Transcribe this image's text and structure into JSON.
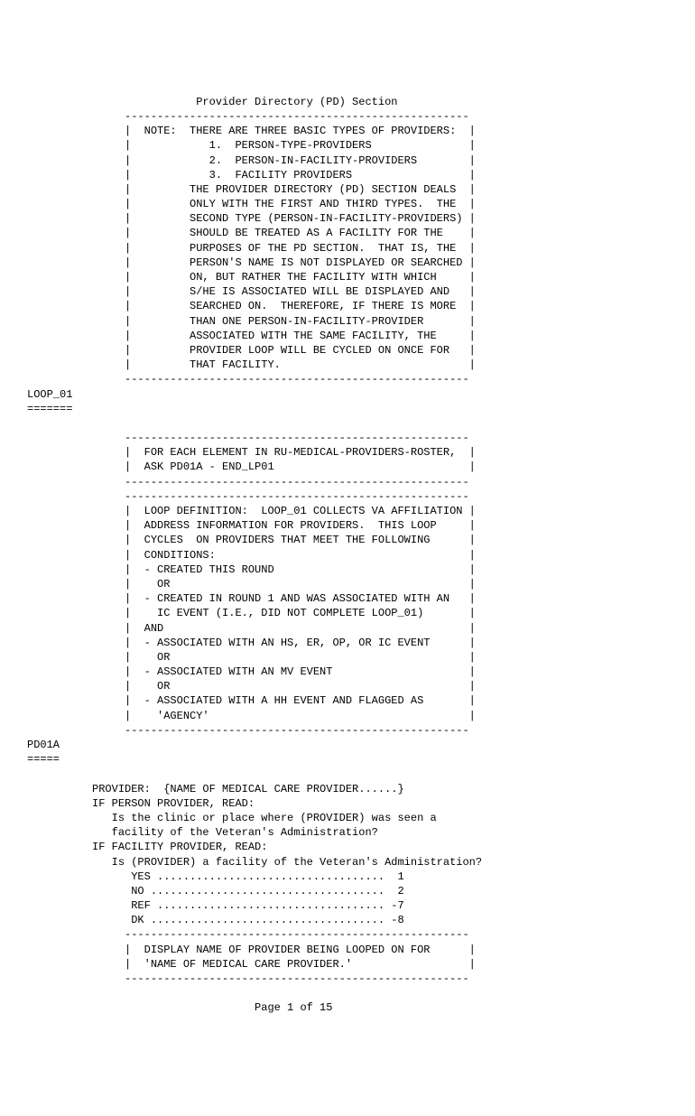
{
  "title": "Provider Directory (PD) Section",
  "box1": {
    "rule": "               -----------------------------------------------------",
    "lines": [
      "               |  NOTE:  THERE ARE THREE BASIC TYPES OF PROVIDERS:  |",
      "               |            1.  PERSON-TYPE-PROVIDERS               |",
      "               |            2.  PERSON-IN-FACILITY-PROVIDERS        |",
      "               |            3.  FACILITY PROVIDERS                  |",
      "               |         THE PROVIDER DIRECTORY (PD) SECTION DEALS  |",
      "               |         ONLY WITH THE FIRST AND THIRD TYPES.  THE  |",
      "               |         SECOND TYPE (PERSON-IN-FACILITY-PROVIDERS) |",
      "               |         SHOULD BE TREATED AS A FACILITY FOR THE    |",
      "               |         PURPOSES OF THE PD SECTION.  THAT IS, THE  |",
      "               |         PERSON'S NAME IS NOT DISPLAYED OR SEARCHED |",
      "               |         ON, BUT RATHER THE FACILITY WITH WHICH     |",
      "               |         S/HE IS ASSOCIATED WILL BE DISPLAYED AND   |",
      "               |         SEARCHED ON.  THEREFORE, IF THERE IS MORE  |",
      "               |         THAN ONE PERSON-IN-FACILITY-PROVIDER       |",
      "               |         ASSOCIATED WITH THE SAME FACILITY, THE     |",
      "               |         PROVIDER LOOP WILL BE CYCLED ON ONCE FOR   |",
      "               |         THAT FACILITY.                             |"
    ]
  },
  "loop01": {
    "label": "LOOP_01",
    "under": "======="
  },
  "box2": {
    "rule": "               -----------------------------------------------------",
    "lines": [
      "               |  FOR EACH ELEMENT IN RU-MEDICAL-PROVIDERS-ROSTER,  |",
      "               |  ASK PD01A - END_LP01                              |"
    ]
  },
  "box3": {
    "rule": "               -----------------------------------------------------",
    "lines": [
      "               |  LOOP DEFINITION:  LOOP_01 COLLECTS VA AFFILIATION |",
      "               |  ADDRESS INFORMATION FOR PROVIDERS.  THIS LOOP     |",
      "               |  CYCLES  ON PROVIDERS THAT MEET THE FOLLOWING      |",
      "               |  CONDITIONS:                                       |",
      "               |  - CREATED THIS ROUND                              |",
      "               |    OR                                              |",
      "               |  - CREATED IN ROUND 1 AND WAS ASSOCIATED WITH AN   |",
      "               |    IC EVENT (I.E., DID NOT COMPLETE LOOP_01)       |",
      "               |  AND                                               |",
      "               |  - ASSOCIATED WITH AN HS, ER, OP, OR IC EVENT      |",
      "               |    OR                                              |",
      "               |  - ASSOCIATED WITH AN MV EVENT                     |",
      "               |    OR                                              |",
      "               |  - ASSOCIATED WITH A HH EVENT AND FLAGGED AS       |",
      "               |    'AGENCY'                                        |"
    ]
  },
  "pd01a": {
    "label": "PD01A",
    "under": "====="
  },
  "body": {
    "lines": [
      "          PROVIDER:  {NAME OF MEDICAL CARE PROVIDER......}",
      "          IF PERSON PROVIDER, READ:",
      "             Is the clinic or place where (PROVIDER) was seen a",
      "             facility of the Veteran's Administration?",
      "          IF FACILITY PROVIDER, READ:",
      "             Is (PROVIDER) a facility of the Veteran's Administration?",
      "                YES ...................................  1",
      "                NO ....................................  2",
      "                REF ................................... -7",
      "                DK .................................... -8"
    ]
  },
  "box4": {
    "rule": "               -----------------------------------------------------",
    "lines": [
      "               |  DISPLAY NAME OF PROVIDER BEING LOOPED ON FOR      |",
      "               |  'NAME OF MEDICAL CARE PROVIDER.'                  |"
    ]
  },
  "footer": "Page 1 of 15"
}
